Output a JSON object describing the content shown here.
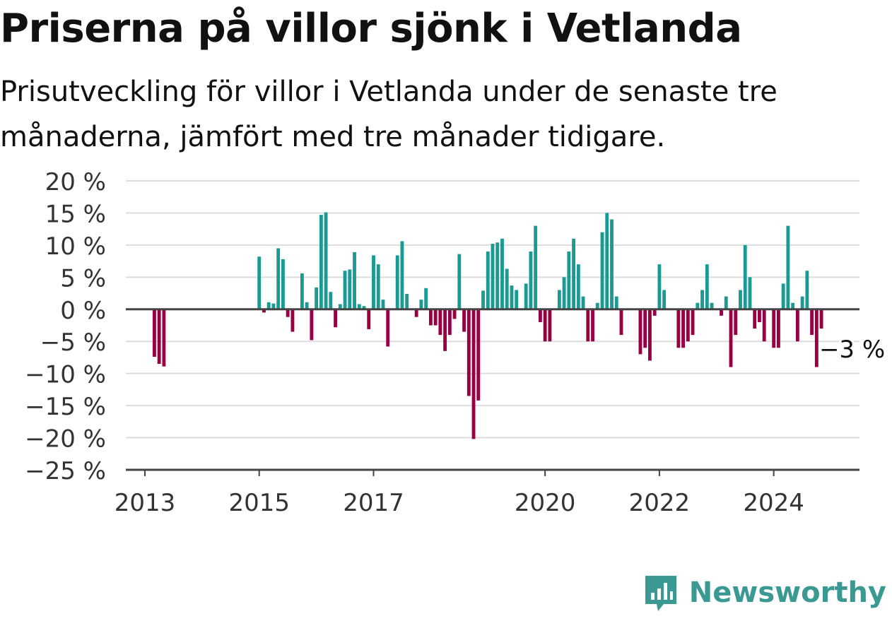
{
  "title": "Priserna på villor sjönk i Vetlanda",
  "subtitle": "Prisutveckling för villor i Vetlanda under de senaste tre månaderna, jämfört med tre månader tidigare.",
  "brand": "Newsworthy",
  "colors": {
    "positive": "#1a9a93",
    "negative": "#990044",
    "grid": "#dddddd",
    "axis": "#444444",
    "brand": "#3a9a93"
  },
  "chart_data": {
    "type": "bar",
    "x_unit": "month",
    "y_unit": "%",
    "ylim": [
      -25,
      20
    ],
    "y_ticks": [
      20,
      15,
      10,
      5,
      0,
      -5,
      -10,
      -15,
      -20,
      -25
    ],
    "y_tick_labels": [
      "20 %",
      "15 %",
      "10 %",
      "5 %",
      "0 %",
      "−5 %",
      "−10 %",
      "−15 %",
      "−20 %",
      "−25 %"
    ],
    "x_range": [
      "2012-09",
      "2025-07"
    ],
    "x_ticks": [
      "2013",
      "2015",
      "2017",
      "2020",
      "2022",
      "2024"
    ],
    "annotation": {
      "month": "2025-01",
      "text": "−3 %"
    },
    "points": [
      {
        "month": "2013-03",
        "value": -7.4
      },
      {
        "month": "2013-04",
        "value": -8.5
      },
      {
        "month": "2013-05",
        "value": -8.9
      },
      {
        "month": "2015-01",
        "value": 8.2
      },
      {
        "month": "2015-02",
        "value": -0.5
      },
      {
        "month": "2015-03",
        "value": 1.1
      },
      {
        "month": "2015-04",
        "value": 0.9
      },
      {
        "month": "2015-05",
        "value": 9.5
      },
      {
        "month": "2015-06",
        "value": 7.8
      },
      {
        "month": "2015-07",
        "value": -1.2
      },
      {
        "month": "2015-08",
        "value": -3.5
      },
      {
        "month": "2015-10",
        "value": 5.6
      },
      {
        "month": "2015-11",
        "value": 1.1
      },
      {
        "month": "2015-12",
        "value": -4.8
      },
      {
        "month": "2016-01",
        "value": 3.4
      },
      {
        "month": "2016-02",
        "value": 14.7
      },
      {
        "month": "2016-03",
        "value": 15.1
      },
      {
        "month": "2016-04",
        "value": 2.7
      },
      {
        "month": "2016-05",
        "value": -2.8
      },
      {
        "month": "2016-06",
        "value": 0.8
      },
      {
        "month": "2016-07",
        "value": 6.0
      },
      {
        "month": "2016-08",
        "value": 6.2
      },
      {
        "month": "2016-09",
        "value": 8.9
      },
      {
        "month": "2016-10",
        "value": 0.8
      },
      {
        "month": "2016-11",
        "value": 0.5
      },
      {
        "month": "2016-12",
        "value": -3.1
      },
      {
        "month": "2017-01",
        "value": 8.4
      },
      {
        "month": "2017-02",
        "value": 7.0
      },
      {
        "month": "2017-03",
        "value": 1.5
      },
      {
        "month": "2017-04",
        "value": -5.8
      },
      {
        "month": "2017-06",
        "value": 8.4
      },
      {
        "month": "2017-07",
        "value": 10.6
      },
      {
        "month": "2017-08",
        "value": 2.4
      },
      {
        "month": "2017-10",
        "value": -1.2
      },
      {
        "month": "2017-11",
        "value": 1.5
      },
      {
        "month": "2017-12",
        "value": 3.3
      },
      {
        "month": "2018-01",
        "value": -2.5
      },
      {
        "month": "2018-02",
        "value": -2.5
      },
      {
        "month": "2018-03",
        "value": -4.0
      },
      {
        "month": "2018-04",
        "value": -6.5
      },
      {
        "month": "2018-05",
        "value": -4.0
      },
      {
        "month": "2018-06",
        "value": -1.5
      },
      {
        "month": "2018-07",
        "value": 8.6
      },
      {
        "month": "2018-08",
        "value": -3.5
      },
      {
        "month": "2018-09",
        "value": -13.5
      },
      {
        "month": "2018-10",
        "value": -20.2
      },
      {
        "month": "2018-11",
        "value": -14.2
      },
      {
        "month": "2018-12",
        "value": 2.9
      },
      {
        "month": "2019-01",
        "value": 9.0
      },
      {
        "month": "2019-02",
        "value": 10.2
      },
      {
        "month": "2019-03",
        "value": 10.4
      },
      {
        "month": "2019-04",
        "value": 11.0
      },
      {
        "month": "2019-05",
        "value": 6.3
      },
      {
        "month": "2019-06",
        "value": 3.7
      },
      {
        "month": "2019-07",
        "value": 3.0
      },
      {
        "month": "2019-09",
        "value": 4.0
      },
      {
        "month": "2019-10",
        "value": 9.0
      },
      {
        "month": "2019-11",
        "value": 13.0
      },
      {
        "month": "2019-12",
        "value": -2.0
      },
      {
        "month": "2020-01",
        "value": -5.0
      },
      {
        "month": "2020-02",
        "value": -5.0
      },
      {
        "month": "2020-04",
        "value": 3.0
      },
      {
        "month": "2020-05",
        "value": 5.0
      },
      {
        "month": "2020-06",
        "value": 9.0
      },
      {
        "month": "2020-07",
        "value": 11.0
      },
      {
        "month": "2020-08",
        "value": 7.0
      },
      {
        "month": "2020-09",
        "value": 2.0
      },
      {
        "month": "2020-10",
        "value": -5.0
      },
      {
        "month": "2020-11",
        "value": -5.0
      },
      {
        "month": "2020-12",
        "value": 1.0
      },
      {
        "month": "2021-01",
        "value": 12.0
      },
      {
        "month": "2021-02",
        "value": 15.0
      },
      {
        "month": "2021-03",
        "value": 14.0
      },
      {
        "month": "2021-04",
        "value": 2.0
      },
      {
        "month": "2021-05",
        "value": -4.0
      },
      {
        "month": "2021-09",
        "value": -7.0
      },
      {
        "month": "2021-10",
        "value": -6.0
      },
      {
        "month": "2021-11",
        "value": -8.0
      },
      {
        "month": "2021-12",
        "value": -1.0
      },
      {
        "month": "2022-01",
        "value": 7.0
      },
      {
        "month": "2022-02",
        "value": 3.0
      },
      {
        "month": "2022-05",
        "value": -6.0
      },
      {
        "month": "2022-06",
        "value": -6.0
      },
      {
        "month": "2022-07",
        "value": -5.0
      },
      {
        "month": "2022-08",
        "value": -4.0
      },
      {
        "month": "2022-09",
        "value": 1.0
      },
      {
        "month": "2022-10",
        "value": 3.0
      },
      {
        "month": "2022-11",
        "value": 7.0
      },
      {
        "month": "2022-12",
        "value": 1.0
      },
      {
        "month": "2023-02",
        "value": -1.0
      },
      {
        "month": "2023-03",
        "value": 2.0
      },
      {
        "month": "2023-04",
        "value": -9.0
      },
      {
        "month": "2023-05",
        "value": -4.0
      },
      {
        "month": "2023-06",
        "value": 3.0
      },
      {
        "month": "2023-07",
        "value": 10.0
      },
      {
        "month": "2023-08",
        "value": 5.0
      },
      {
        "month": "2023-09",
        "value": -3.0
      },
      {
        "month": "2023-10",
        "value": -2.0
      },
      {
        "month": "2023-11",
        "value": -5.0
      },
      {
        "month": "2024-01",
        "value": -6.0
      },
      {
        "month": "2024-02",
        "value": -6.0
      },
      {
        "month": "2024-03",
        "value": 4.0
      },
      {
        "month": "2024-04",
        "value": 13.0
      },
      {
        "month": "2024-05",
        "value": 1.0
      },
      {
        "month": "2024-06",
        "value": -5.0
      },
      {
        "month": "2024-07",
        "value": 2.0
      },
      {
        "month": "2024-08",
        "value": 6.0
      },
      {
        "month": "2024-09",
        "value": -4.0
      },
      {
        "month": "2024-10",
        "value": -9.0
      },
      {
        "month": "2024-11",
        "value": -3.0
      }
    ]
  }
}
